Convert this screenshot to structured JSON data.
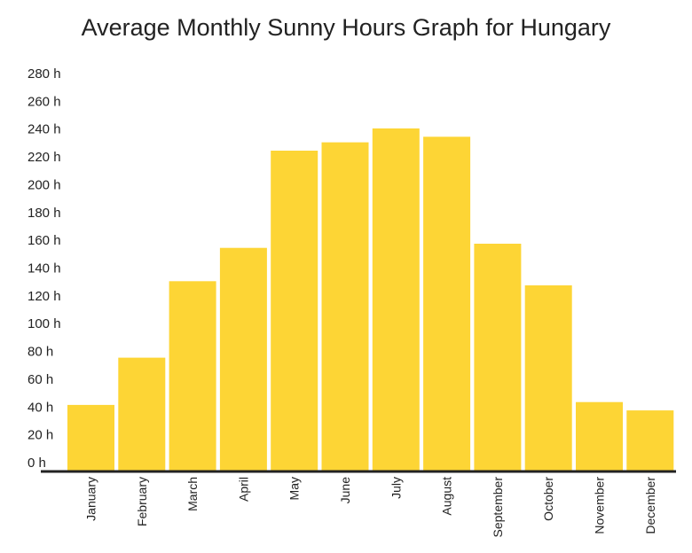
{
  "chart_data": {
    "type": "bar",
    "title": "Average Monthly Sunny Hours Graph for Hungary",
    "xlabel": "",
    "ylabel": "",
    "categories": [
      "January",
      "February",
      "March",
      "April",
      "May",
      "June",
      "July",
      "August",
      "September",
      "October",
      "November",
      "December"
    ],
    "values": [
      46,
      80,
      135,
      159,
      229,
      235,
      245,
      239,
      162,
      132,
      48,
      42
    ],
    "yticks": [
      "0 h",
      "20 h",
      "40 h",
      "60 h",
      "80 h",
      "100 h",
      "120 h",
      "140 h",
      "160 h",
      "180 h",
      "200 h",
      "220 h",
      "240 h",
      "260 h",
      "280 h"
    ],
    "ylim": [
      0,
      280
    ],
    "grid": false,
    "legend": "none",
    "colors": {
      "bar": "#fdd535",
      "axis": "#222222",
      "text": "#222222"
    }
  }
}
